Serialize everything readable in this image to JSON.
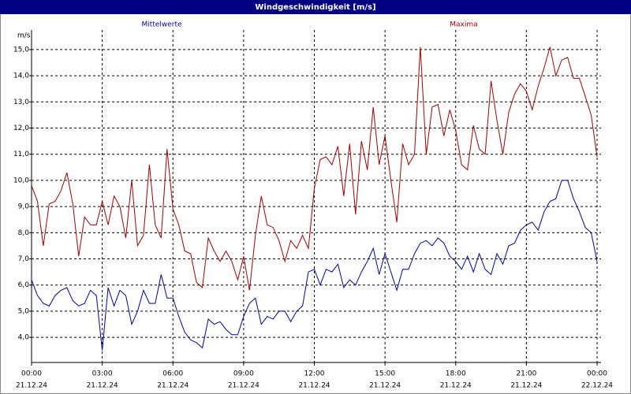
{
  "chart_data": {
    "type": "line",
    "title": "Windgeschwindigkeit [m/s]",
    "ylabel": "m/s",
    "x": [
      0,
      0.25,
      0.5,
      0.75,
      1,
      1.25,
      1.5,
      1.75,
      2,
      2.25,
      2.5,
      2.75,
      3,
      3.25,
      3.5,
      3.75,
      4,
      4.25,
      4.5,
      4.75,
      5,
      5.25,
      5.5,
      5.75,
      6,
      6.25,
      6.5,
      6.75,
      7,
      7.25,
      7.5,
      7.75,
      8,
      8.25,
      8.5,
      8.75,
      9,
      9.25,
      9.5,
      9.75,
      10,
      10.25,
      10.5,
      10.75,
      11,
      11.25,
      11.5,
      11.75,
      12,
      12.25,
      12.5,
      12.75,
      13,
      13.25,
      13.5,
      13.75,
      14,
      14.25,
      14.5,
      14.75,
      15,
      15.25,
      15.5,
      15.75,
      16,
      16.25,
      16.5,
      16.75,
      17,
      17.25,
      17.5,
      17.75,
      18,
      18.25,
      18.5,
      18.75,
      19,
      19.25,
      19.5,
      19.75,
      20,
      20.25,
      20.5,
      20.75,
      21,
      21.25,
      21.5,
      21.75,
      22,
      22.25,
      22.5,
      22.75,
      23,
      23.25,
      23.5,
      23.75,
      24
    ],
    "series": [
      {
        "name": "Mittelwerte",
        "color": "#0000a0",
        "values": [
          6.2,
          5.6,
          5.3,
          5.2,
          5.6,
          5.8,
          5.9,
          5.4,
          5.2,
          5.3,
          5.8,
          5.6,
          3.5,
          5.9,
          5.2,
          5.8,
          5.6,
          4.5,
          5.0,
          5.8,
          5.3,
          5.3,
          6.4,
          5.5,
          5.5,
          4.8,
          4.2,
          3.9,
          3.8,
          3.6,
          4.7,
          4.5,
          4.6,
          4.3,
          4.1,
          4.1,
          4.8,
          5.3,
          5.5,
          4.5,
          4.8,
          4.7,
          5.0,
          5.0,
          4.6,
          5.0,
          5.2,
          6.5,
          6.6,
          6.0,
          6.6,
          6.5,
          6.8,
          5.9,
          6.2,
          6.0,
          6.5,
          6.9,
          7.4,
          6.4,
          7.2,
          6.5,
          5.8,
          6.6,
          6.6,
          7.2,
          7.6,
          7.7,
          7.5,
          7.8,
          7.6,
          7.1,
          6.9,
          6.6,
          7.1,
          6.5,
          7.2,
          6.6,
          6.4,
          7.2,
          6.8,
          7.5,
          7.6,
          8.1,
          8.3,
          8.4,
          8.1,
          8.8,
          9.2,
          9.3,
          10.0,
          10.0,
          9.3,
          8.8,
          8.2,
          8.0,
          6.9
        ]
      },
      {
        "name": "Maxima",
        "color": "#a00000",
        "values": [
          9.8,
          9.2,
          7.5,
          9.1,
          9.2,
          9.6,
          10.3,
          9.1,
          7.1,
          8.6,
          8.3,
          8.3,
          9.2,
          8.3,
          9.4,
          9.0,
          7.8,
          10.0,
          7.5,
          7.9,
          10.6,
          8.3,
          7.8,
          11.2,
          8.9,
          8.3,
          7.3,
          7.2,
          6.1,
          5.9,
          7.8,
          7.3,
          6.9,
          7.3,
          6.9,
          6.2,
          7.1,
          5.8,
          7.9,
          9.4,
          8.3,
          8.2,
          7.7,
          6.9,
          7.7,
          7.4,
          7.9,
          7.4,
          9.7,
          10.8,
          10.9,
          10.6,
          11.3,
          9.4,
          11.4,
          8.7,
          11.5,
          10.4,
          12.8,
          10.6,
          11.7,
          10.0,
          8.4,
          11.4,
          10.6,
          11.0,
          15.1,
          11.0,
          12.8,
          12.9,
          11.7,
          12.7,
          11.9,
          10.6,
          10.4,
          12.1,
          11.2,
          11.0,
          13.8,
          12.3,
          11.0,
          12.6,
          13.3,
          13.7,
          13.4,
          12.7,
          13.6,
          14.3,
          15.1,
          14.0,
          14.6,
          14.7,
          13.9,
          13.9,
          13.2,
          12.5,
          10.9
        ]
      }
    ],
    "xlim": [
      0,
      24
    ],
    "xticks": [
      {
        "value": 0,
        "label": "00:00",
        "date": "21.12.24"
      },
      {
        "value": 3,
        "label": "03:00",
        "date": "21.12.24"
      },
      {
        "value": 6,
        "label": "06:00",
        "date": "21.12.24"
      },
      {
        "value": 9,
        "label": "09:00",
        "date": "21.12.24"
      },
      {
        "value": 12,
        "label": "12:00",
        "date": "21.12.24"
      },
      {
        "value": 15,
        "label": "15:00",
        "date": "21.12.24"
      },
      {
        "value": 18,
        "label": "18:00",
        "date": "21.12.24"
      },
      {
        "value": 21,
        "label": "21:00",
        "date": "21.12.24"
      },
      {
        "value": 24,
        "label": "00:00",
        "date": "22.12.24"
      }
    ],
    "ylim": [
      3.04,
      15.75
    ],
    "yticks": [
      {
        "value": 4,
        "label": "4,0"
      },
      {
        "value": 5,
        "label": "5,0"
      },
      {
        "value": 6,
        "label": "6,0"
      },
      {
        "value": 7,
        "label": "7,0"
      },
      {
        "value": 8,
        "label": "8,0"
      },
      {
        "value": 9,
        "label": "9,0"
      },
      {
        "value": 10,
        "label": "10,0"
      },
      {
        "value": 11,
        "label": "11,0"
      },
      {
        "value": 12,
        "label": "12,0"
      },
      {
        "value": 13,
        "label": "13,0"
      },
      {
        "value": 14,
        "label": "14,0"
      },
      {
        "value": 15,
        "label": "15,0"
      }
    ],
    "grid": true
  }
}
